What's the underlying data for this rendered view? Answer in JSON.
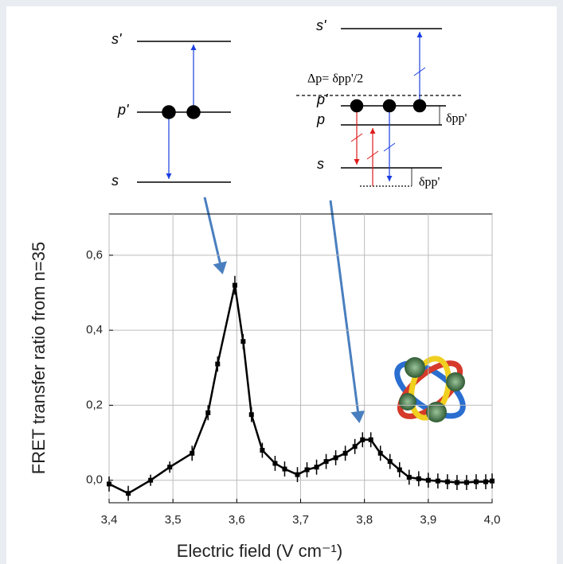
{
  "chart_data": {
    "type": "line",
    "x_label": "Electric field (V cm⁻¹)",
    "y_label": "FRET transfer ratio from n=35",
    "x": [
      3.4,
      3.43,
      3.465,
      3.495,
      3.53,
      3.555,
      3.57,
      3.597,
      3.61,
      3.623,
      3.64,
      3.66,
      3.675,
      3.695,
      3.71,
      3.725,
      3.74,
      3.755,
      3.77,
      3.785,
      3.797,
      3.81,
      3.825,
      3.84,
      3.855,
      3.87,
      3.885,
      3.9,
      3.915,
      3.93,
      3.945,
      3.96,
      3.975,
      3.99,
      4.0
    ],
    "values": [
      -0.01,
      -0.035,
      0.0,
      0.035,
      0.072,
      0.18,
      0.31,
      0.52,
      0.37,
      0.175,
      0.08,
      0.045,
      0.03,
      0.015,
      0.028,
      0.035,
      0.05,
      0.06,
      0.072,
      0.09,
      0.108,
      0.108,
      0.072,
      0.05,
      0.028,
      0.008,
      0.004,
      0.0,
      -0.002,
      -0.004,
      -0.006,
      -0.006,
      -0.004,
      -0.004,
      -0.002
    ],
    "errors": [
      0.02,
      0.02,
      0.015,
      0.015,
      0.02,
      0.02,
      0.02,
      0.025,
      0.02,
      0.02,
      0.02,
      0.02,
      0.02,
      0.02,
      0.02,
      0.02,
      0.02,
      0.02,
      0.02,
      0.02,
      0.02,
      0.02,
      0.02,
      0.02,
      0.02,
      0.02,
      0.02,
      0.02,
      0.02,
      0.02,
      0.02,
      0.02,
      0.02,
      0.02,
      0.02
    ],
    "color": "#000000",
    "xlim": [
      3.4,
      4.0
    ],
    "ylim": [
      -0.06,
      0.71
    ],
    "xticks": [
      {
        "value": 3.4,
        "label": "3,4"
      },
      {
        "value": 3.5,
        "label": "3,5"
      },
      {
        "value": 3.6,
        "label": "3,6"
      },
      {
        "value": 3.7,
        "label": "3,7"
      },
      {
        "value": 3.8,
        "label": "3,8"
      },
      {
        "value": 3.9,
        "label": "3,9"
      },
      {
        "value": 4.0,
        "label": "4,0"
      }
    ],
    "yticks": [
      {
        "value": 0.0,
        "label": "0,0"
      },
      {
        "value": 0.2,
        "label": "0,2"
      },
      {
        "value": 0.4,
        "label": "0,4"
      },
      {
        "value": 0.6,
        "label": "0,6"
      }
    ],
    "grid": true
  },
  "diagrams": {
    "left": {
      "s_prime": "s'",
      "p_prime": "p'",
      "s": "s"
    },
    "right": {
      "s_prime": "s'",
      "delta": "Δp= δpp'/2",
      "p_prime": "p'",
      "p": "p",
      "s": "s",
      "delta_pp_upper": "δpp'",
      "delta_pp_lower": "δpp'"
    }
  }
}
